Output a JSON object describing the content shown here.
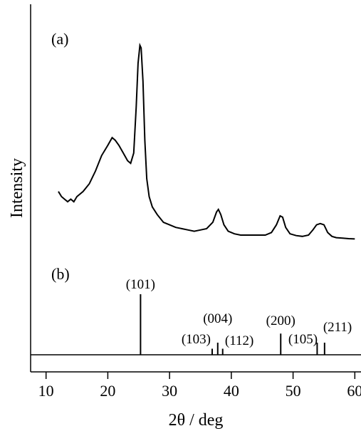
{
  "chart_data": {
    "type": "line",
    "xlabel": "2θ / deg",
    "ylabel": "Intensity",
    "xlim": [
      7.5,
      61
    ],
    "xticks": [
      10,
      20,
      30,
      40,
      50,
      60
    ],
    "panel_labels": {
      "a": "(a)",
      "b": "(b)"
    },
    "series": [
      {
        "points": [
          [
            12,
            0.42
          ],
          [
            12.5,
            0.4
          ],
          [
            13,
            0.39
          ],
          [
            13.5,
            0.38
          ],
          [
            14,
            0.39
          ],
          [
            14.5,
            0.38
          ],
          [
            15,
            0.4
          ],
          [
            16,
            0.42
          ],
          [
            17,
            0.45
          ],
          [
            18,
            0.5
          ],
          [
            19,
            0.56
          ],
          [
            20,
            0.6
          ],
          [
            20.7,
            0.63
          ],
          [
            21.2,
            0.62
          ],
          [
            21.8,
            0.6
          ],
          [
            22.5,
            0.57
          ],
          [
            23.2,
            0.54
          ],
          [
            23.7,
            0.53
          ],
          [
            24.2,
            0.57
          ],
          [
            24.6,
            0.75
          ],
          [
            24.9,
            0.92
          ],
          [
            25.2,
            0.99
          ],
          [
            25.4,
            0.98
          ],
          [
            25.7,
            0.85
          ],
          [
            26.0,
            0.62
          ],
          [
            26.3,
            0.47
          ],
          [
            26.7,
            0.4
          ],
          [
            27.2,
            0.36
          ],
          [
            28,
            0.33
          ],
          [
            29,
            0.3
          ],
          [
            30,
            0.29
          ],
          [
            31,
            0.28
          ],
          [
            32,
            0.275
          ],
          [
            33,
            0.27
          ],
          [
            34,
            0.265
          ],
          [
            35,
            0.27
          ],
          [
            36,
            0.275
          ],
          [
            37,
            0.3
          ],
          [
            37.6,
            0.34
          ],
          [
            37.9,
            0.35
          ],
          [
            38.3,
            0.33
          ],
          [
            38.8,
            0.29
          ],
          [
            39.5,
            0.265
          ],
          [
            40.5,
            0.255
          ],
          [
            41.5,
            0.25
          ],
          [
            42.5,
            0.25
          ],
          [
            44,
            0.25
          ],
          [
            45.5,
            0.25
          ],
          [
            46.5,
            0.26
          ],
          [
            47.3,
            0.29
          ],
          [
            47.9,
            0.325
          ],
          [
            48.3,
            0.32
          ],
          [
            48.8,
            0.28
          ],
          [
            49.5,
            0.255
          ],
          [
            50.5,
            0.248
          ],
          [
            51.5,
            0.245
          ],
          [
            52.5,
            0.25
          ],
          [
            53.2,
            0.27
          ],
          [
            53.8,
            0.29
          ],
          [
            54.4,
            0.295
          ],
          [
            55,
            0.29
          ],
          [
            55.6,
            0.26
          ],
          [
            56.3,
            0.245
          ],
          [
            57,
            0.24
          ],
          [
            58,
            0.238
          ],
          [
            59,
            0.236
          ],
          [
            60,
            0.235
          ]
        ]
      }
    ],
    "reference_lines": [
      {
        "label": "(101)",
        "x": 25.3,
        "height": 1.0
      },
      {
        "label": "(103)",
        "x": 36.9,
        "height": 0.1
      },
      {
        "label": "(004)",
        "x": 37.8,
        "height": 0.2
      },
      {
        "label": "(112)",
        "x": 38.6,
        "height": 0.1
      },
      {
        "label": "(200)",
        "x": 48.0,
        "height": 0.35
      },
      {
        "label": "(105)",
        "x": 53.9,
        "height": 0.2
      },
      {
        "label": "(211)",
        "x": 55.1,
        "height": 0.2
      }
    ]
  }
}
